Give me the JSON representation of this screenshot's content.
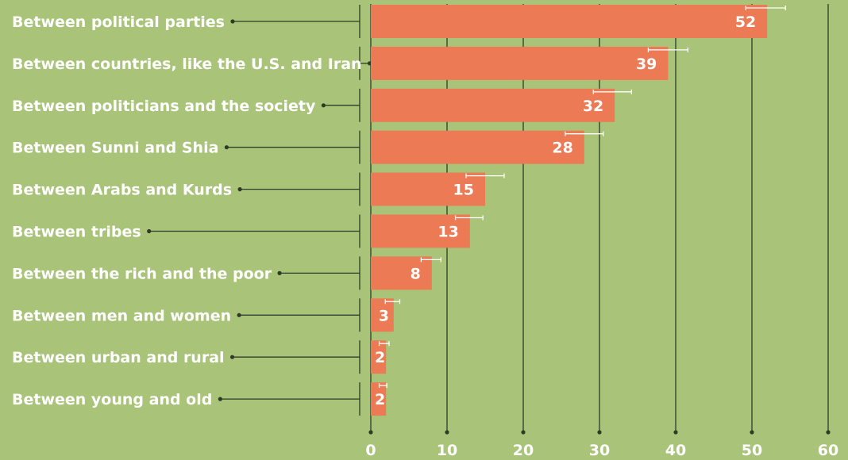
{
  "chart_data": {
    "type": "bar",
    "orientation": "horizontal",
    "categories": [
      "Between political parties",
      "Between countries, like the U.S. and Iran",
      "Between politicians and the society",
      "Between Sunni and Shia",
      "Between Arabs and Kurds",
      "Between tribes",
      "Between the rich and the poor",
      "Between men and women",
      "Between urban and rural",
      "Between young and old"
    ],
    "values": [
      52,
      39,
      32,
      28,
      15,
      13,
      8,
      3,
      2,
      2
    ],
    "error_bars": [
      [
        49.2,
        54.4
      ],
      [
        36.4,
        41.6
      ],
      [
        29.2,
        34.2
      ],
      [
        25.5,
        30.5
      ],
      [
        12.5,
        17.5
      ],
      [
        11.1,
        14.7
      ],
      [
        6.6,
        9.2
      ],
      [
        1.9,
        3.8
      ],
      [
        1.1,
        2.4
      ],
      [
        1.1,
        2.1
      ]
    ],
    "title": "",
    "xlabel": "",
    "ylabel": "",
    "xlim": [
      0,
      60
    ],
    "xticks": [
      0,
      10,
      20,
      30,
      40,
      50,
      60
    ],
    "grid": true,
    "colors": {
      "background": "#a9c479",
      "bar": "#eb7a55",
      "text": "#ffffff",
      "line": "#2f3a28",
      "error_bar": "#ffffff"
    }
  }
}
